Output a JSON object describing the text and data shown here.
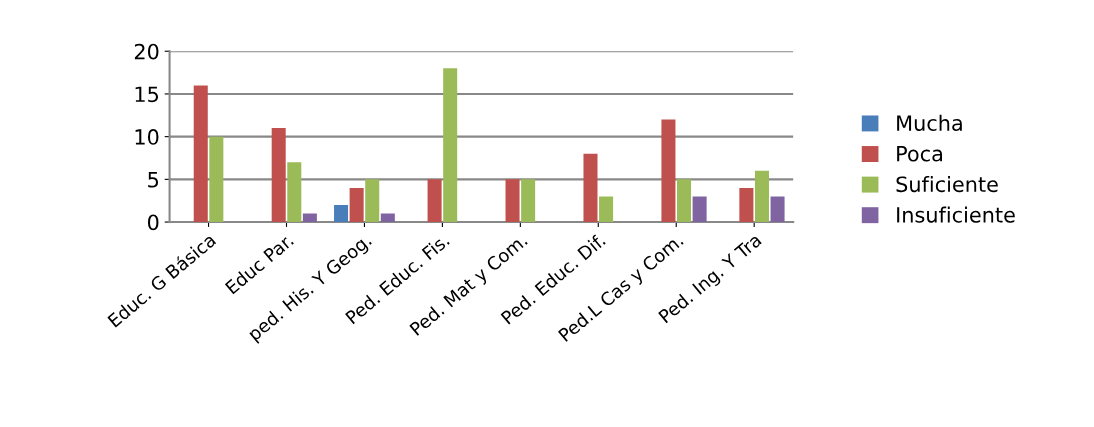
{
  "chart_data": {
    "type": "bar",
    "categories": [
      "Educ. G Básica",
      "Educ Par.",
      "ped. His. Y Geog.",
      "Ped. Educ. Fis.",
      "Ped. Mat y Com.",
      "Ped. Educ. Dif.",
      "Ped.L Cas y Com.",
      "Ped. Ing. Y Tra"
    ],
    "series": [
      {
        "name": "Mucha",
        "color": "#4a7ebb",
        "values": [
          0,
          0,
          2,
          0,
          0,
          0,
          0,
          0
        ]
      },
      {
        "name": "Poca",
        "color": "#c0504d",
        "values": [
          16,
          11,
          4,
          5,
          5,
          8,
          12,
          4
        ]
      },
      {
        "name": "Suficiente",
        "color": "#9bbb59",
        "values": [
          10,
          7,
          5,
          18,
          5,
          3,
          5,
          6
        ]
      },
      {
        "name": "Insuficiente",
        "color": "#8064a2",
        "values": [
          0,
          1,
          1,
          0,
          0,
          0,
          3,
          3
        ]
      }
    ],
    "ylim": [
      0,
      20
    ],
    "yticks": [
      0,
      5,
      10,
      15,
      20
    ],
    "grid": "y",
    "legend": "right"
  }
}
